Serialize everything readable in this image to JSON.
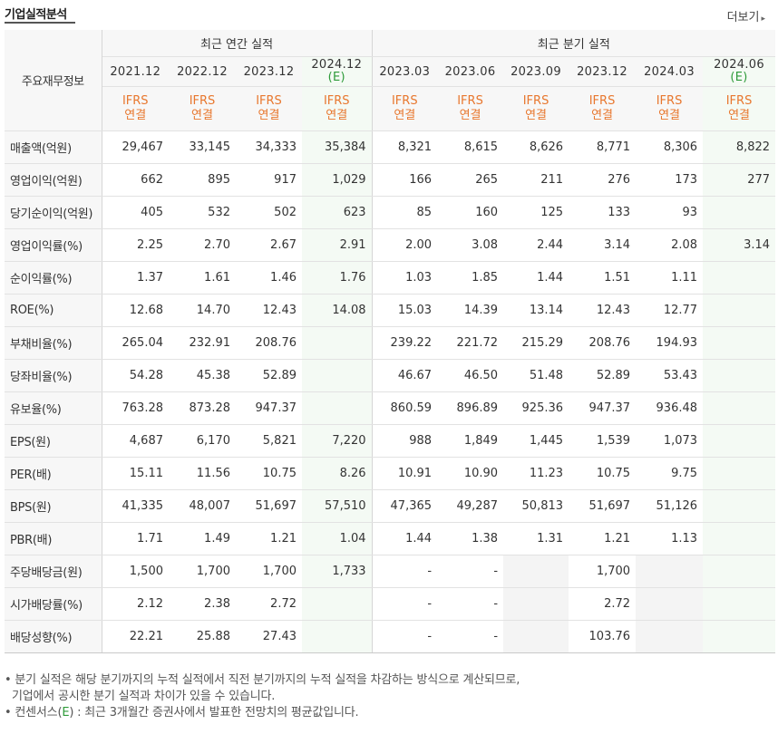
{
  "header": {
    "title": "기업실적분석",
    "more_label": "더보기"
  },
  "table": {
    "category_header": "주요재무정보",
    "annual_group": "최근 연간 실적",
    "quarter_group": "최근 분기 실적",
    "periods": [
      {
        "date": "2021.12",
        "est": ""
      },
      {
        "date": "2022.12",
        "est": ""
      },
      {
        "date": "2023.12",
        "est": ""
      },
      {
        "date": "2024.12",
        "est": "(E)"
      },
      {
        "date": "2023.03",
        "est": ""
      },
      {
        "date": "2023.06",
        "est": ""
      },
      {
        "date": "2023.09",
        "est": ""
      },
      {
        "date": "2023.12",
        "est": ""
      },
      {
        "date": "2024.03",
        "est": ""
      },
      {
        "date": "2024.06",
        "est": "(E)"
      }
    ],
    "ifrs_label": "IFRS",
    "basis_label": "연결",
    "rows": [
      {
        "label": "매출액(억원)",
        "values": [
          "29,467",
          "33,145",
          "34,333",
          "35,384",
          "8,321",
          "8,615",
          "8,626",
          "8,771",
          "8,306",
          "8,822"
        ]
      },
      {
        "label": "영업이익(억원)",
        "values": [
          "662",
          "895",
          "917",
          "1,029",
          "166",
          "265",
          "211",
          "276",
          "173",
          "277"
        ]
      },
      {
        "label": "당기순이익(억원)",
        "values": [
          "405",
          "532",
          "502",
          "623",
          "85",
          "160",
          "125",
          "133",
          "93",
          ""
        ]
      },
      {
        "label": "영업이익률(%)",
        "values": [
          "2.25",
          "2.70",
          "2.67",
          "2.91",
          "2.00",
          "3.08",
          "2.44",
          "3.14",
          "2.08",
          "3.14"
        ]
      },
      {
        "label": "순이익률(%)",
        "values": [
          "1.37",
          "1.61",
          "1.46",
          "1.76",
          "1.03",
          "1.85",
          "1.44",
          "1.51",
          "1.11",
          ""
        ]
      },
      {
        "label": "ROE(%)",
        "values": [
          "12.68",
          "14.70",
          "12.43",
          "14.08",
          "15.03",
          "14.39",
          "13.14",
          "12.43",
          "12.77",
          ""
        ]
      },
      {
        "label": "부채비율(%)",
        "values": [
          "265.04",
          "232.91",
          "208.76",
          "",
          "239.22",
          "221.72",
          "215.29",
          "208.76",
          "194.93",
          ""
        ]
      },
      {
        "label": "당좌비율(%)",
        "values": [
          "54.28",
          "45.38",
          "52.89",
          "",
          "46.67",
          "46.50",
          "51.48",
          "52.89",
          "53.43",
          ""
        ]
      },
      {
        "label": "유보율(%)",
        "values": [
          "763.28",
          "873.28",
          "947.37",
          "",
          "860.59",
          "896.89",
          "925.36",
          "947.37",
          "936.48",
          ""
        ]
      },
      {
        "label": "EPS(원)",
        "values": [
          "4,687",
          "6,170",
          "5,821",
          "7,220",
          "988",
          "1,849",
          "1,445",
          "1,539",
          "1,073",
          ""
        ]
      },
      {
        "label": "PER(배)",
        "values": [
          "15.11",
          "11.56",
          "10.75",
          "8.26",
          "10.91",
          "10.90",
          "11.23",
          "10.75",
          "9.75",
          ""
        ]
      },
      {
        "label": "BPS(원)",
        "values": [
          "41,335",
          "48,007",
          "51,697",
          "57,510",
          "47,365",
          "49,287",
          "50,813",
          "51,697",
          "51,126",
          ""
        ]
      },
      {
        "label": "PBR(배)",
        "values": [
          "1.71",
          "1.49",
          "1.21",
          "1.04",
          "1.44",
          "1.38",
          "1.31",
          "1.21",
          "1.13",
          ""
        ]
      },
      {
        "label": "주당배당금(원)",
        "values": [
          "1,500",
          "1,700",
          "1,700",
          "1,733",
          "-",
          "-",
          "",
          "1,700",
          "",
          ""
        ]
      },
      {
        "label": "시가배당률(%)",
        "values": [
          "2.12",
          "2.38",
          "2.72",
          "",
          "-",
          "-",
          "",
          "2.72",
          "",
          ""
        ]
      },
      {
        "label": "배당성향(%)",
        "values": [
          "22.21",
          "25.88",
          "27.43",
          "",
          "-",
          "-",
          "",
          "103.76",
          "",
          ""
        ]
      }
    ]
  },
  "notes": {
    "line1": "분기 실적은 해당 분기까지의 누적 실적에서 직전 분기까지의 누적 실적을 차감하는 방식으로 계산되므로,",
    "line2": "기업에서 공시한 분기 실적과 차이가 있을 수 있습니다.",
    "line3_prefix": "컨센서스(",
    "line3_e": "E",
    "line3_suffix": ") : 최근 3개월간 증권사에서 발표한 전망치의 평균값입니다."
  }
}
